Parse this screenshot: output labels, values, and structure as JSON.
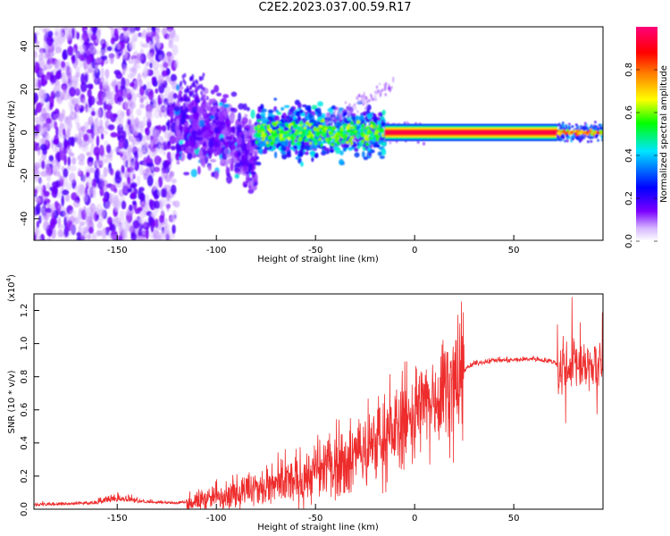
{
  "title": "C2E2.2023.037.00.59.R17",
  "chart_data": [
    {
      "type": "heatmap",
      "xlabel": "Height of straight line (km)",
      "ylabel": "Frequency (Hz)",
      "xlim": [
        -192,
        95
      ],
      "ylim": [
        -50,
        49
      ],
      "x_ticks": [
        -150,
        -100,
        -50,
        0,
        50
      ],
      "y_ticks": [
        -40,
        -20,
        0,
        20,
        40
      ],
      "colorbar": {
        "label": "Normalized spectral amplitude",
        "range": [
          0.0,
          1.0
        ],
        "ticks": [
          "0.0",
          "0.2",
          "0.4",
          "0.6",
          "0.8"
        ],
        "colors": [
          "#ffffff",
          "#7a00ff",
          "#0000ff",
          "#00e0ff",
          "#00ff00",
          "#ffff00",
          "#ff8000",
          "#ff0000",
          "#ff00a0"
        ]
      },
      "regions": [
        {
          "x": [
            -192,
            -120
          ],
          "freq_center": 0,
          "freq_spread": 50,
          "amplitude": 0.15
        },
        {
          "x": [
            -120,
            -80
          ],
          "freq_center": 0,
          "freq_spread": 15,
          "amplitude": 0.3
        },
        {
          "x": [
            -80,
            -15
          ],
          "freq_center": 0,
          "freq_spread": 8,
          "amplitude": 0.45
        },
        {
          "x": [
            -15,
            72
          ],
          "freq_center": 0,
          "freq_spread": 1,
          "amplitude": 0.95
        },
        {
          "x": [
            72,
            95
          ],
          "freq_center": 0,
          "freq_spread": 3,
          "amplitude": 0.7
        }
      ]
    },
    {
      "type": "line",
      "xlabel": "Height of straight line (km)",
      "ylabel": "SNR (10 * v/v)",
      "y_multiplier": "(x10",
      "y_multiplier_exp": "4",
      "y_multiplier_close": ")",
      "xlim": [
        -192,
        95
      ],
      "ylim": [
        0,
        1.3
      ],
      "x_ticks": [
        -150,
        -100,
        -50,
        0,
        50
      ],
      "y_ticks": [
        0.0,
        0.2,
        0.4,
        0.6,
        0.8,
        1.0,
        1.2
      ],
      "color": "#ee2c2c",
      "series": [
        {
          "x": [
            -192,
            -160,
            -150,
            -140,
            -120,
            -110,
            -100,
            -90,
            -80,
            -70,
            -60,
            -50,
            -40,
            -30,
            -20,
            -10,
            0,
            10,
            20,
            30,
            40,
            50,
            60,
            70,
            75,
            80,
            85,
            90,
            95
          ],
          "y": [
            0.02,
            0.03,
            0.05,
            0.04,
            0.03,
            0.05,
            0.08,
            0.1,
            0.12,
            0.14,
            0.17,
            0.22,
            0.28,
            0.32,
            0.4,
            0.48,
            0.58,
            0.68,
            0.8,
            0.88,
            0.9,
            0.9,
            0.91,
            0.89,
            0.85,
            0.9,
            0.85,
            0.88,
            0.85
          ]
        }
      ]
    }
  ]
}
